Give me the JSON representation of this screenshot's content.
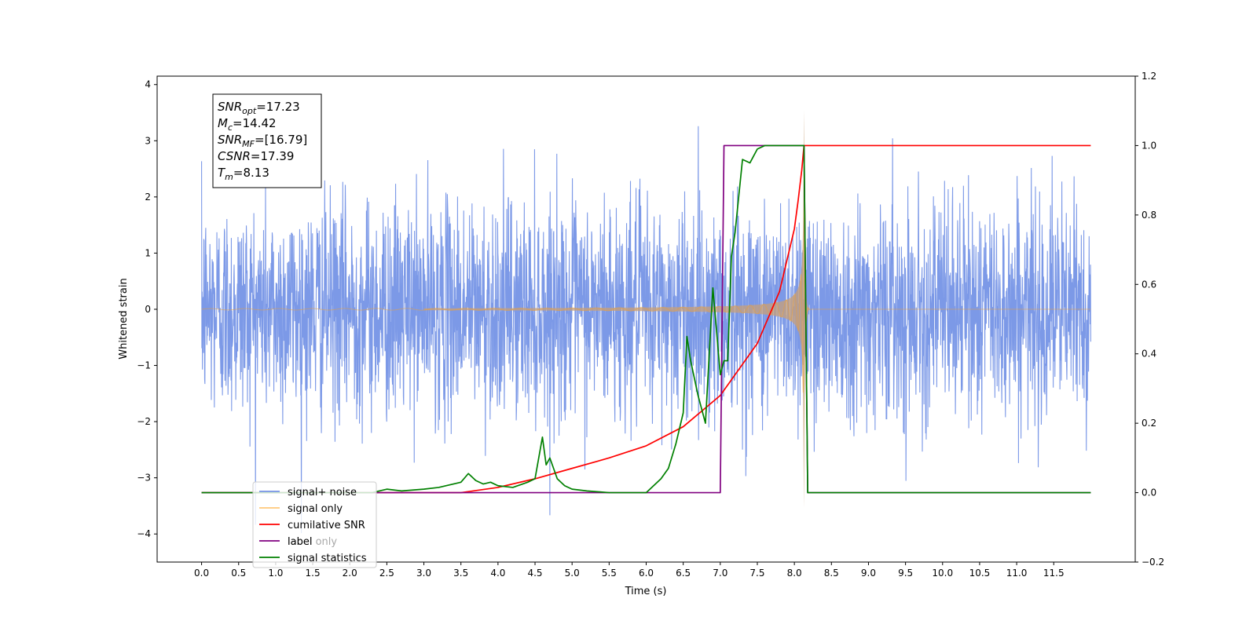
{
  "chart_data": {
    "type": "line",
    "xlabel": "Time (s)",
    "ylabel": "Whitened strain",
    "xlim": [
      -0.6,
      12.6
    ],
    "ylim": [
      -4.5,
      4.15
    ],
    "y2lim": [
      -0.2,
      1.2
    ],
    "x_ticks": [
      "0.0",
      "0.5",
      "1.0",
      "1.5",
      "2.0",
      "2.5",
      "3.0",
      "3.5",
      "4.0",
      "4.5",
      "5.0",
      "5.5",
      "6.0",
      "6.5",
      "7.0",
      "7.5",
      "8.0",
      "8.5",
      "9.0",
      "9.5",
      "10.0",
      "10.5",
      "11.0",
      "11.5"
    ],
    "y_ticks": [
      "4",
      "3",
      "2",
      "1",
      "0",
      "−1",
      "−2",
      "−3",
      "−4"
    ],
    "y2_ticks": [
      "1.2",
      "1.0",
      "0.8",
      "0.6",
      "0.4",
      "0.2",
      "0.0",
      "−0.2"
    ],
    "grid": false,
    "legend_position": "lower-left",
    "annotation": [
      {
        "sym": "SNR",
        "sub": "opt",
        "val": "=17.23"
      },
      {
        "sym": "M",
        "sub": "c",
        "val": "=14.42"
      },
      {
        "sym": "SNR",
        "sub": "MF",
        "val": "=[16.79]"
      },
      {
        "sym": "CSNR",
        "sub": "",
        "val": "=17.39"
      },
      {
        "sym": "T",
        "sub": "m",
        "val": "=8.13"
      }
    ],
    "series": [
      {
        "name": "signal+ noise",
        "axis": "left",
        "color": "#7593e6",
        "style": "noise",
        "x_range": [
          0.0,
          12.0
        ],
        "peak_max": 3.75,
        "peak_min": -4.1
      },
      {
        "name": "signal only",
        "axis": "left",
        "color": "#f0a030",
        "style": "chirp",
        "x_range": [
          0.0,
          12.0
        ],
        "merger_time": 8.13,
        "peak_amplitude": 3.55
      },
      {
        "name": "cumilative SNR",
        "axis": "right",
        "color": "#ff0000",
        "x": [
          0.0,
          3.5,
          4.0,
          4.5,
          5.0,
          5.5,
          6.0,
          6.5,
          7.0,
          7.5,
          7.8,
          8.0,
          8.05,
          8.1,
          8.13,
          12.0
        ],
        "y": [
          0.0,
          0.0,
          0.015,
          0.04,
          0.07,
          0.1,
          0.135,
          0.19,
          0.28,
          0.43,
          0.58,
          0.76,
          0.84,
          0.93,
          1.0,
          1.0
        ]
      },
      {
        "name": "label",
        "axis": "right",
        "color": "#800080",
        "x": [
          0.0,
          7.0,
          7.05,
          8.13,
          8.18,
          12.0
        ],
        "y": [
          0.0,
          0.0,
          1.0,
          1.0,
          0.0,
          0.0
        ]
      },
      {
        "name": "signal statistics",
        "axis": "right",
        "color": "#008000",
        "x": [
          0.0,
          2.3,
          2.5,
          2.7,
          3.0,
          3.2,
          3.5,
          3.6,
          3.65,
          3.7,
          3.8,
          3.9,
          4.0,
          4.2,
          4.4,
          4.5,
          4.6,
          4.65,
          4.7,
          4.8,
          4.9,
          5.0,
          5.2,
          5.5,
          5.8,
          6.0,
          6.2,
          6.3,
          6.4,
          6.5,
          6.55,
          6.6,
          6.7,
          6.8,
          6.9,
          7.0,
          7.05,
          7.1,
          7.15,
          7.2,
          7.3,
          7.4,
          7.5,
          7.6,
          7.7,
          8.1,
          8.13,
          8.18,
          12.0
        ],
        "y": [
          0.0,
          0.0,
          0.01,
          0.005,
          0.01,
          0.015,
          0.03,
          0.055,
          0.045,
          0.035,
          0.025,
          0.03,
          0.02,
          0.015,
          0.03,
          0.04,
          0.16,
          0.08,
          0.1,
          0.04,
          0.02,
          0.01,
          0.005,
          0.0,
          0.0,
          0.0,
          0.04,
          0.07,
          0.14,
          0.23,
          0.45,
          0.38,
          0.28,
          0.2,
          0.59,
          0.34,
          0.38,
          0.38,
          0.68,
          0.75,
          0.96,
          0.95,
          0.99,
          1.0,
          1.0,
          1.0,
          1.0,
          0.0,
          0.0
        ]
      }
    ],
    "legend_entries": [
      {
        "label": "signal+ noise",
        "color": "#7593e6"
      },
      {
        "label": "signal only",
        "color": "#ffc87a"
      },
      {
        "label": "cumilative SNR",
        "color": "#ff0000"
      },
      {
        "label": "label",
        "color": "#800080"
      },
      {
        "label": "signal statistics",
        "color": "#008000"
      }
    ],
    "hidden_legend_label": "label only"
  }
}
